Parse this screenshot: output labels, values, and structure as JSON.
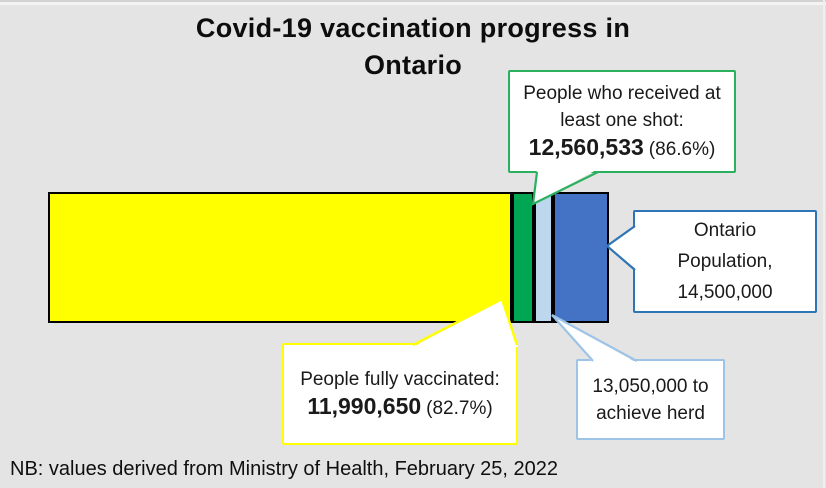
{
  "title": {
    "line1": "Covid-19 vaccination progress in",
    "line2": "Ontario"
  },
  "footer": {
    "note": "NB: values derived from Ministry of Health, February 25, 2022"
  },
  "colors": {
    "background": "#E5E4E4",
    "bar_outline": "#000000",
    "bar_yellow": "#FFFF00",
    "bar_green": "#00A651",
    "bar_light_blue": "#BDD7EE",
    "bar_blue": "#4472C4",
    "callout_green_border": "#2BB05F",
    "callout_yellow_border": "#FFFF00",
    "callout_blue_border": "#2E75B6",
    "callout_light_blue_border": "#9DC3E6"
  },
  "chart_data": {
    "type": "bar",
    "orientation": "horizontal",
    "title": "Covid-19 vaccination progress in Ontario",
    "total": 14500000,
    "note": "NB: values derived from Ministry of Health, February 25, 2022",
    "segments": [
      {
        "name": "fully-vaccinated",
        "label": "People fully vaccinated",
        "value": 11990650,
        "percent_of_total": 82.7,
        "color": "#FFFF00"
      },
      {
        "name": "one-shot",
        "label": "People who received at least one shot",
        "value": 12560533,
        "percent_of_total": 86.6,
        "color": "#00A651"
      },
      {
        "name": "herd-threshold",
        "label": "13,050,000 to achieve herd",
        "value": 13050000,
        "percent_of_total": 90.0,
        "color": "#BDD7EE"
      },
      {
        "name": "population",
        "label": "Ontario Population",
        "value": 14500000,
        "percent_of_total": 100,
        "color": "#4472C4"
      }
    ]
  },
  "callouts": {
    "one_shot": {
      "line1": "People who received at",
      "line2": "least one shot:",
      "value": "12,560,533",
      "percent": "(86.6%)"
    },
    "population": {
      "line1": "Ontario",
      "line2": "Population,",
      "line3": "14,500,000"
    },
    "fully_vaccinated": {
      "line1": "People fully vaccinated:",
      "value": "11,990,650",
      "percent": "(82.7%)"
    },
    "herd": {
      "line1": "13,050,000 to",
      "line2": "achieve herd"
    }
  }
}
